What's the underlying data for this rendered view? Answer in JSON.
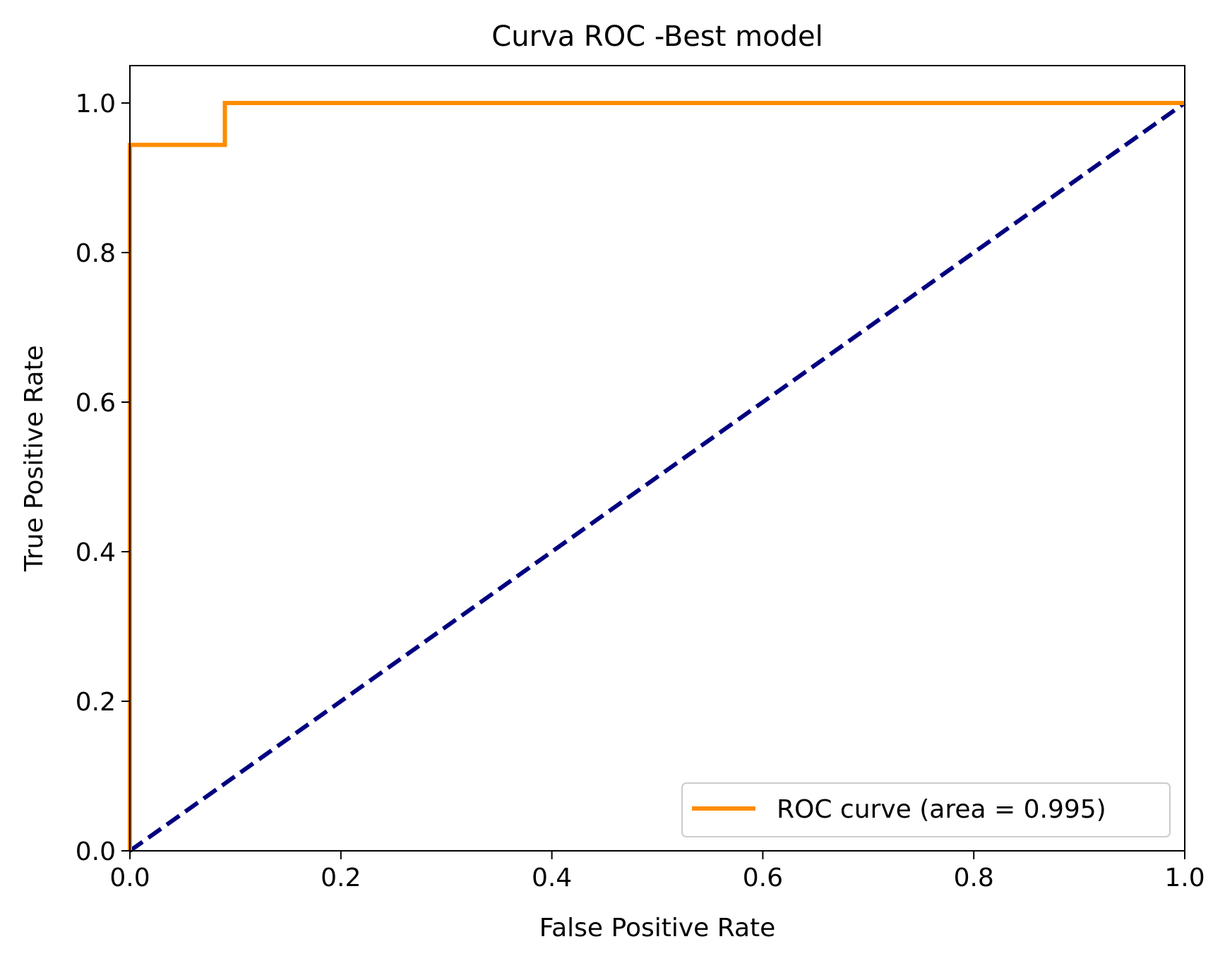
{
  "chart_data": {
    "type": "line",
    "title": "Curva ROC -Best model",
    "xlabel": "False Positive Rate",
    "ylabel": "True Positive Rate",
    "xlim": [
      0.0,
      1.0
    ],
    "ylim": [
      0.0,
      1.05
    ],
    "x_ticks": [
      0.0,
      0.2,
      0.4,
      0.6,
      0.8,
      1.0
    ],
    "x_tick_labels": [
      "0.0",
      "0.2",
      "0.4",
      "0.6",
      "0.8",
      "1.0"
    ],
    "y_ticks": [
      0.0,
      0.2,
      0.4,
      0.6,
      0.8,
      1.0
    ],
    "y_tick_labels": [
      "0.0",
      "0.2",
      "0.4",
      "0.6",
      "0.8",
      "1.0"
    ],
    "grid": false,
    "legend_position": "lower-right",
    "series": [
      {
        "name": "ROC curve (area = 0.995)",
        "color": "#ff8c00",
        "line_style": "solid",
        "step": true,
        "x": [
          0.0,
          0.0,
          0.09,
          0.09,
          1.0
        ],
        "y": [
          0.0,
          0.944,
          0.944,
          1.0,
          1.0
        ]
      },
      {
        "color": "#000080",
        "line_style": "dashed",
        "x": [
          0.0,
          1.0
        ],
        "y": [
          0.0,
          1.0
        ]
      }
    ]
  }
}
